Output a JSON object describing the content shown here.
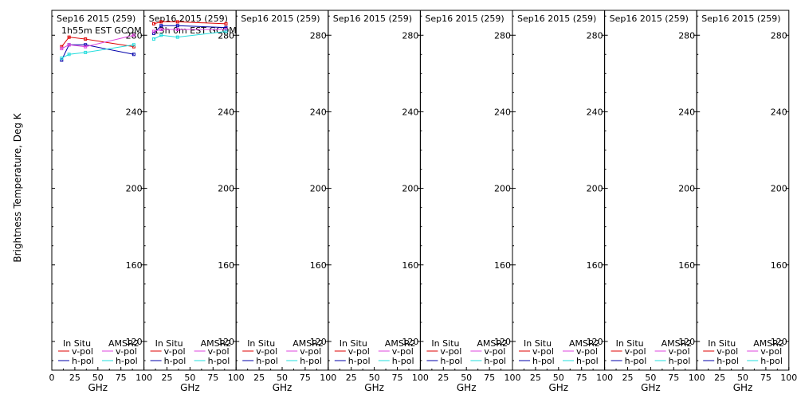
{
  "figure": {
    "ylabel": "Brightness Temperature, Deg K",
    "xlabel": "GHz",
    "yticks": [
      120,
      160,
      200,
      240,
      280
    ],
    "xticks_first": [
      "0",
      "25",
      "50",
      "75",
      "100"
    ],
    "xticks_rest": [
      "25",
      "50",
      "75",
      "100"
    ],
    "legend": {
      "insitu_label": "In Situ",
      "amsr2_label": "AMSR2",
      "vpol_label": "v-pol",
      "hpol_label": "h-pol",
      "colors": {
        "insitu_v": "#dd0000",
        "insitu_h": "#0000aa",
        "amsr2_v": "#dd44dd",
        "amsr2_h": "#22dddd"
      }
    }
  },
  "chart_data": [
    {
      "type": "line",
      "title": "Sep16 2015 (259)",
      "subtitle": "1h55m EST GCOM",
      "xlim": [
        0,
        100
      ],
      "ylim": [
        105,
        293
      ],
      "series": [
        {
          "name": "In Situ v-pol",
          "color": "#dd0000",
          "x": [
            10.65,
            18.7,
            36.5,
            89.0
          ],
          "y": [
            274,
            279,
            278,
            274
          ]
        },
        {
          "name": "In Situ h-pol",
          "color": "#0000aa",
          "x": [
            10.65,
            18.7,
            36.5,
            89.0
          ],
          "y": [
            267,
            275,
            275,
            270
          ]
        },
        {
          "name": "AMSR2 v-pol",
          "color": "#dd44dd",
          "x": [
            10.65,
            18.7,
            36.5,
            89.0
          ],
          "y": [
            273,
            275,
            274,
            280
          ]
        },
        {
          "name": "AMSR2 h-pol",
          "color": "#22dddd",
          "x": [
            10.65,
            18.7,
            36.5,
            89.0
          ],
          "y": [
            268,
            270,
            271,
            275
          ]
        }
      ]
    },
    {
      "type": "line",
      "title": "Sep16 2015 (259)",
      "subtitle": "13h 0m EST GCOM",
      "xlim": [
        0,
        100
      ],
      "ylim": [
        105,
        293
      ],
      "series": [
        {
          "name": "In Situ v-pol",
          "color": "#dd0000",
          "x": [
            10.65,
            18.7,
            36.5,
            89.0
          ],
          "y": [
            286,
            287,
            287,
            286
          ]
        },
        {
          "name": "In Situ h-pol",
          "color": "#0000aa",
          "x": [
            10.65,
            18.7,
            36.5,
            89.0
          ],
          "y": [
            281,
            285,
            285,
            284
          ]
        },
        {
          "name": "AMSR2 v-pol",
          "color": "#dd44dd",
          "x": [
            10.65,
            18.7,
            36.5,
            89.0
          ],
          "y": [
            282,
            283,
            283,
            283
          ]
        },
        {
          "name": "AMSR2 h-pol",
          "color": "#22dddd",
          "x": [
            10.65,
            18.7,
            36.5,
            89.0
          ],
          "y": [
            278,
            280,
            279,
            282
          ]
        }
      ]
    },
    {
      "type": "line",
      "title": "Sep16 2015 (259)",
      "subtitle": "",
      "xlim": [
        0,
        100
      ],
      "ylim": [
        105,
        293
      ],
      "series": []
    },
    {
      "type": "line",
      "title": "Sep16 2015 (259)",
      "subtitle": "",
      "xlim": [
        0,
        100
      ],
      "ylim": [
        105,
        293
      ],
      "series": []
    },
    {
      "type": "line",
      "title": "Sep16 2015 (259)",
      "subtitle": "",
      "xlim": [
        0,
        100
      ],
      "ylim": [
        105,
        293
      ],
      "series": []
    },
    {
      "type": "line",
      "title": "Sep16 2015 (259)",
      "subtitle": "",
      "xlim": [
        0,
        100
      ],
      "ylim": [
        105,
        293
      ],
      "series": []
    },
    {
      "type": "line",
      "title": "Sep16 2015 (259)",
      "subtitle": "",
      "xlim": [
        0,
        100
      ],
      "ylim": [
        105,
        293
      ],
      "series": []
    },
    {
      "type": "line",
      "title": "Sep16 2015 (259)",
      "subtitle": "",
      "xlim": [
        0,
        100
      ],
      "ylim": [
        105,
        293
      ],
      "series": []
    }
  ]
}
